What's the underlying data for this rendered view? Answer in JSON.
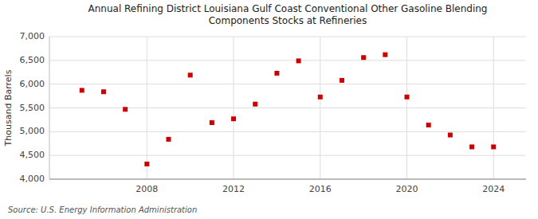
{
  "chart_data": {
    "type": "scatter",
    "title": "Annual Refining District Louisiana Gulf Coast Conventional Other Gasoline Blending\nComponents Stocks at Refineries",
    "ylabel": "Thousand Barrels",
    "source": "Source: U.S. Energy Information Administration",
    "x": [
      2005,
      2006,
      2007,
      2008,
      2009,
      2010,
      2011,
      2012,
      2013,
      2014,
      2015,
      2016,
      2017,
      2018,
      2019,
      2020,
      2021,
      2022,
      2023,
      2024
    ],
    "values": [
      5870,
      5840,
      5470,
      4320,
      4840,
      6190,
      5190,
      5270,
      5580,
      6230,
      6490,
      5730,
      6080,
      6560,
      6620,
      5730,
      5140,
      4930,
      4680,
      4680
    ],
    "color": "#cc0000",
    "marker": "square",
    "xlim": [
      2003.5,
      2025.5
    ],
    "xticks": [
      2008,
      2012,
      2016,
      2020,
      2024
    ],
    "ylim": [
      4000,
      7000
    ],
    "yticks": [
      {
        "value": 4000,
        "label": "4,000"
      },
      {
        "value": 4500,
        "label": "4,500"
      },
      {
        "value": 5000,
        "label": "5,000"
      },
      {
        "value": 5500,
        "label": "5,500"
      },
      {
        "value": 6000,
        "label": "6,000"
      },
      {
        "value": 6500,
        "label": "6,500"
      },
      {
        "value": 7000,
        "label": "7,000"
      }
    ],
    "grid": true
  }
}
